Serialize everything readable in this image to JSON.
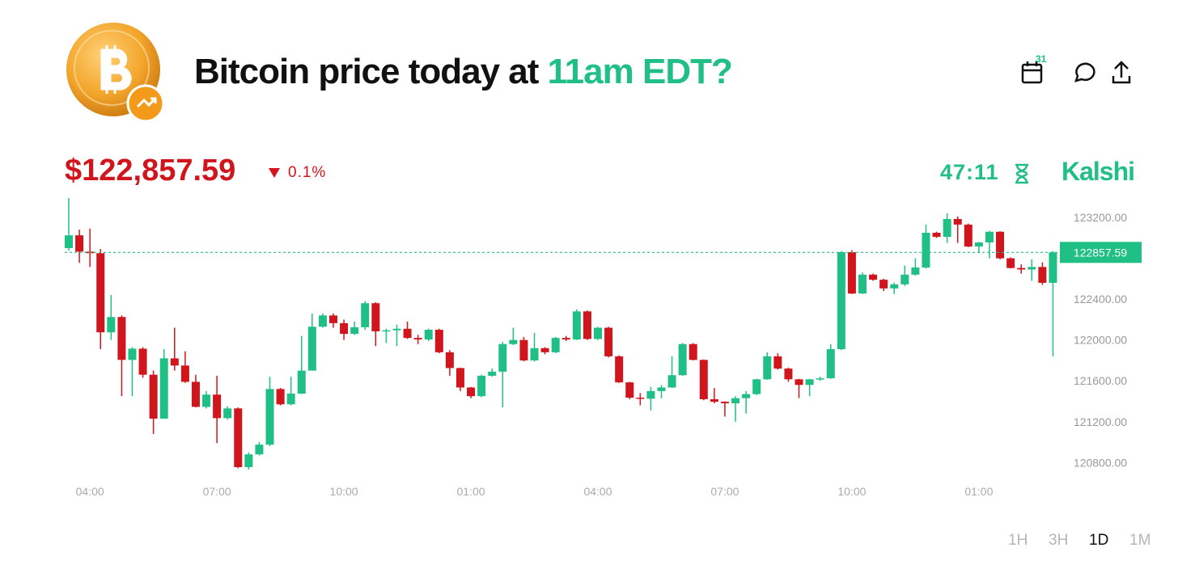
{
  "header": {
    "title_prefix": "Bitcoin price today at ",
    "title_highlight": "11am EDT?",
    "calendar_badge": "31",
    "price": "$122,857.59",
    "change": "0.1%",
    "timer": "47:11",
    "brand": "Kalshi"
  },
  "ranges": [
    "1H",
    "3H",
    "1D",
    "1M"
  ],
  "selected_range": "1D",
  "chart_data": {
    "type": "candlestick",
    "up_color": "#1fbf85",
    "down_color": "#d0151c",
    "categories": [
      null,
      null,
      "04:00",
      null,
      null,
      null,
      null,
      null,
      null,
      null,
      null,
      null,
      null,
      null,
      "07:00",
      null,
      null,
      null,
      null,
      null,
      null,
      null,
      null,
      null,
      null,
      null,
      "10:00",
      null,
      null,
      null,
      null,
      null,
      null,
      null,
      null,
      null,
      null,
      null,
      "01:00",
      null,
      null,
      null,
      null,
      null,
      null,
      null,
      null,
      null,
      null,
      null,
      "04:00",
      null,
      null,
      null,
      null,
      null,
      null,
      null,
      null,
      null,
      null,
      null,
      "07:00",
      null,
      null,
      null,
      null,
      null,
      null,
      null,
      null,
      null,
      null,
      null,
      "10:00",
      null,
      null,
      null,
      null,
      null,
      null,
      null,
      null,
      null,
      null,
      null,
      "01:00",
      null,
      null,
      null,
      null,
      null,
      null,
      null
    ],
    "open": [
      122900,
      123025,
      122865,
      122850,
      122075,
      122225,
      121805,
      121915,
      121660,
      121230,
      121820,
      121750,
      121590,
      121345,
      121465,
      121235,
      121330,
      120755,
      120880,
      120975,
      121520,
      121370,
      121475,
      121700,
      122130,
      122240,
      122165,
      122060,
      122125,
      122360,
      122085,
      122095,
      122110,
      122020,
      122005,
      122100,
      121880,
      121725,
      121535,
      121450,
      121650,
      121690,
      121960,
      122000,
      121800,
      121920,
      121880,
      122020,
      122005,
      122280,
      122010,
      122120,
      121840,
      121585,
      121435,
      121425,
      121500,
      121535,
      121655,
      121960,
      121805,
      121420,
      121395,
      121380,
      121430,
      121470,
      121615,
      121840,
      121720,
      121615,
      121560,
      121615,
      121625,
      121910,
      122860,
      122455,
      122640,
      122590,
      122505,
      122545,
      122640,
      122710,
      123050,
      123010,
      123185,
      123130,
      122915,
      122955,
      123060,
      122800,
      122705,
      122690,
      122715,
      122560
    ],
    "high": [
      123390,
      123080,
      123090,
      122890,
      122440,
      122240,
      121930,
      121930,
      121700,
      121910,
      122120,
      121890,
      121660,
      121500,
      121650,
      121350,
      121340,
      120900,
      121000,
      121640,
      121530,
      121640,
      122040,
      122260,
      122260,
      122260,
      122200,
      122180,
      122380,
      122370,
      122110,
      122150,
      122180,
      122050,
      122110,
      122110,
      121900,
      121730,
      121540,
      121660,
      121720,
      121980,
      122120,
      122030,
      122070,
      121930,
      122030,
      122040,
      122300,
      122290,
      122130,
      122130,
      121850,
      121590,
      121480,
      121540,
      121560,
      121840,
      121970,
      121970,
      121810,
      121530,
      121400,
      121450,
      121500,
      121620,
      121880,
      121870,
      121730,
      121620,
      121620,
      121640,
      121960,
      122870,
      122880,
      122660,
      122650,
      122600,
      122560,
      122730,
      122800,
      123130,
      123060,
      123240,
      123210,
      123140,
      122960,
      123070,
      123065,
      122810,
      122740,
      122790,
      122760,
      122870
    ],
    "low": [
      122875,
      122755,
      122715,
      121910,
      122000,
      121450,
      121450,
      121630,
      121080,
      121230,
      121700,
      121580,
      121340,
      121330,
      120990,
      121220,
      120745,
      120730,
      120870,
      120960,
      121360,
      121360,
      121470,
      121700,
      122120,
      122120,
      122000,
      122050,
      122100,
      121940,
      121970,
      121940,
      122010,
      121960,
      121990,
      121870,
      121650,
      121500,
      121430,
      121440,
      121640,
      121340,
      121950,
      121790,
      121790,
      121860,
      121870,
      121990,
      122000,
      122000,
      122000,
      121830,
      121580,
      121420,
      121360,
      121310,
      121430,
      121530,
      121650,
      121800,
      121410,
      121380,
      121250,
      121200,
      121280,
      121460,
      121610,
      121710,
      121590,
      121430,
      121450,
      121600,
      121620,
      121900,
      122450,
      122450,
      122580,
      122480,
      122450,
      122530,
      122630,
      122700,
      123000,
      122950,
      122950,
      122910,
      122850,
      122800,
      122790,
      122700,
      122650,
      122580,
      122540,
      121840
    ],
    "close": [
      123025,
      122865,
      122850,
      122075,
      122225,
      121805,
      121915,
      121660,
      121230,
      121820,
      121750,
      121590,
      121345,
      121465,
      121235,
      121330,
      120755,
      120880,
      120975,
      121520,
      121370,
      121475,
      121700,
      122130,
      122240,
      122165,
      122060,
      122125,
      122360,
      122085,
      122095,
      122110,
      122020,
      122005,
      122100,
      121880,
      121725,
      121535,
      121450,
      121650,
      121690,
      121960,
      122000,
      121800,
      121920,
      121880,
      122020,
      122005,
      122280,
      122010,
      122120,
      121840,
      121585,
      121435,
      121425,
      121500,
      121535,
      121655,
      121960,
      121805,
      121420,
      121395,
      121380,
      121430,
      121470,
      121615,
      121840,
      121720,
      121615,
      121560,
      121615,
      121625,
      121910,
      122860,
      122455,
      122640,
      122590,
      122505,
      122545,
      122640,
      122710,
      123050,
      123010,
      123185,
      123130,
      122915,
      122955,
      123060,
      122800,
      122705,
      122690,
      122715,
      122560,
      122857.59
    ],
    "current_price": 122857.59,
    "ylim": [
      120660,
      123430
    ],
    "yticks": [
      {
        "value": 120800,
        "label": "120800.00"
      },
      {
        "value": 121200,
        "label": "121200.00"
      },
      {
        "value": 121600,
        "label": "121600.00"
      },
      {
        "value": 122000,
        "label": "122000.00"
      },
      {
        "value": 122400,
        "label": "122400.00"
      },
      {
        "value": 123200,
        "label": "123200.00"
      }
    ]
  }
}
